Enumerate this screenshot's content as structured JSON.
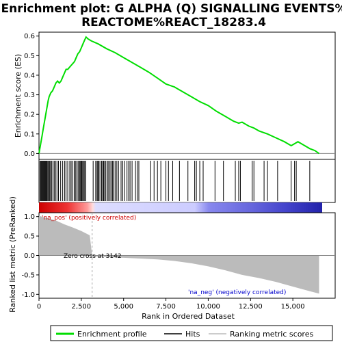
{
  "chart_data": {
    "type": "line",
    "title_line1": "Enrichment plot: G ALPHA (Q) SIGNALLING EVENTS%",
    "title_line2": "REACTOME%REACT_18283.4",
    "xlabel": "Rank in Ordered Dataset",
    "ylabel_top": "Enrichment score (ES)",
    "ylabel_bottom": "Ranked list metric (PreRanked)",
    "x_ticks": [
      0,
      2500,
      5000,
      7500,
      10000,
      12500,
      15000
    ],
    "x_tick_labels": [
      "0",
      "2,500",
      "5,000",
      "7,500",
      "10,000",
      "12,500",
      "15,000"
    ],
    "xlim": [
      0,
      17500
    ],
    "es_ylim": [
      -0.03,
      0.62
    ],
    "es_ticks": [
      0.0,
      0.1,
      0.2,
      0.3,
      0.4,
      0.5,
      0.6
    ],
    "es_tick_labels": [
      "0.0",
      "0.1",
      "0.2",
      "0.3",
      "0.4",
      "0.5",
      "0.6"
    ],
    "metric_ylim": [
      -1.1,
      1.1
    ],
    "metric_ticks": [
      1.0,
      0.5,
      0.0,
      -0.5,
      -1.0
    ],
    "metric_tick_labels": [
      "1.0",
      "0.5",
      "0.0",
      "-0.5",
      "-1.0"
    ],
    "zero_cross_label": "Zero cross at 3142",
    "zero_cross_rank": 3142,
    "pos_label": "'na_pos' (positively correlated)",
    "neg_label": "'na_neg' (negatively correlated)",
    "n_genes": 16500,
    "es_curve": [
      [
        0,
        0.0
      ],
      [
        60,
        0.03
      ],
      [
        120,
        0.06
      ],
      [
        180,
        0.09
      ],
      [
        240,
        0.12
      ],
      [
        300,
        0.15
      ],
      [
        360,
        0.18
      ],
      [
        420,
        0.21
      ],
      [
        480,
        0.24
      ],
      [
        540,
        0.27
      ],
      [
        600,
        0.29
      ],
      [
        700,
        0.31
      ],
      [
        800,
        0.32
      ],
      [
        900,
        0.34
      ],
      [
        1000,
        0.36
      ],
      [
        1100,
        0.37
      ],
      [
        1200,
        0.36
      ],
      [
        1300,
        0.37
      ],
      [
        1400,
        0.39
      ],
      [
        1500,
        0.41
      ],
      [
        1600,
        0.43
      ],
      [
        1700,
        0.43
      ],
      [
        1800,
        0.44
      ],
      [
        1900,
        0.45
      ],
      [
        2000,
        0.46
      ],
      [
        2100,
        0.47
      ],
      [
        2200,
        0.49
      ],
      [
        2300,
        0.51
      ],
      [
        2400,
        0.52
      ],
      [
        2500,
        0.54
      ],
      [
        2600,
        0.56
      ],
      [
        2700,
        0.58
      ],
      [
        2780,
        0.595
      ],
      [
        2900,
        0.585
      ],
      [
        3100,
        0.575
      ],
      [
        3500,
        0.56
      ],
      [
        4000,
        0.535
      ],
      [
        4500,
        0.515
      ],
      [
        5000,
        0.49
      ],
      [
        5500,
        0.465
      ],
      [
        6000,
        0.44
      ],
      [
        6500,
        0.415
      ],
      [
        7000,
        0.385
      ],
      [
        7500,
        0.355
      ],
      [
        8000,
        0.34
      ],
      [
        8500,
        0.315
      ],
      [
        9000,
        0.29
      ],
      [
        9500,
        0.265
      ],
      [
        10000,
        0.245
      ],
      [
        10500,
        0.215
      ],
      [
        11000,
        0.19
      ],
      [
        11500,
        0.165
      ],
      [
        11800,
        0.155
      ],
      [
        12000,
        0.16
      ],
      [
        12400,
        0.14
      ],
      [
        12700,
        0.13
      ],
      [
        13000,
        0.115
      ],
      [
        13500,
        0.1
      ],
      [
        14000,
        0.08
      ],
      [
        14500,
        0.06
      ],
      [
        14900,
        0.04
      ],
      [
        15100,
        0.05
      ],
      [
        15300,
        0.06
      ],
      [
        15600,
        0.045
      ],
      [
        16000,
        0.025
      ],
      [
        16300,
        0.015
      ],
      [
        16550,
        0.0
      ]
    ],
    "hit_ranks": [
      60,
      110,
      150,
      190,
      230,
      270,
      310,
      350,
      390,
      430,
      470,
      520,
      570,
      620,
      680,
      740,
      820,
      900,
      980,
      1060,
      1150,
      1280,
      1400,
      1520,
      1600,
      1700,
      1820,
      1900,
      2000,
      2080,
      2150,
      2230,
      2310,
      2380,
      2430,
      2480,
      2530,
      2580,
      2640,
      2700,
      2760,
      3200,
      3350,
      3430,
      3480,
      3530,
      3600,
      3700,
      3760,
      3820,
      3880,
      3950,
      4050,
      4120,
      4200,
      4270,
      4350,
      4420,
      4500,
      4600,
      4700,
      4850,
      4950,
      5050,
      5200,
      5300,
      5380,
      5500,
      5700,
      5800,
      5900,
      6600,
      6800,
      7000,
      7200,
      7500,
      7650,
      7900,
      8300,
      8800,
      9200,
      9300,
      9500,
      9700,
      10400,
      10900,
      11600,
      11800,
      11900,
      12600,
      12700,
      13300,
      13500,
      14100,
      14900,
      15100,
      15200,
      16000
    ],
    "metric_points": [
      [
        0,
        1.02
      ],
      [
        300,
        0.98
      ],
      [
        600,
        0.95
      ],
      [
        1000,
        0.9
      ],
      [
        1500,
        0.8
      ],
      [
        2000,
        0.72
      ],
      [
        2500,
        0.63
      ],
      [
        3000,
        0.52
      ],
      [
        3142,
        0.0
      ],
      [
        3150,
        -0.02
      ],
      [
        4000,
        -0.04
      ],
      [
        5000,
        -0.06
      ],
      [
        6000,
        -0.08
      ],
      [
        7000,
        -0.1
      ],
      [
        8000,
        -0.14
      ],
      [
        9000,
        -0.2
      ],
      [
        10000,
        -0.28
      ],
      [
        11000,
        -0.38
      ],
      [
        12000,
        -0.5
      ],
      [
        13000,
        -0.58
      ],
      [
        14000,
        -0.68
      ],
      [
        15000,
        -0.8
      ],
      [
        16000,
        -0.92
      ],
      [
        16550,
        -0.98
      ]
    ],
    "legend": [
      "Enrichment profile",
      "Hits",
      "Ranking metric scores"
    ],
    "colors": {
      "es_line": "#00dd00",
      "hit": "#000000",
      "metric_fill": "#bbbbbb",
      "pos_text": "#cc0000",
      "neg_text": "#0000cc",
      "zero_line": "#aaaaaa"
    }
  }
}
